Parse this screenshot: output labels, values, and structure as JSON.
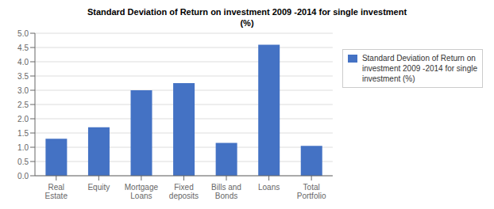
{
  "chart_data": {
    "type": "bar",
    "title": "Standard Deviation of Return on investment 2009 -2014 for single investment",
    "subtitle": "(%)",
    "categories": [
      "Real\nEstate",
      "Equity",
      "Mortgage\nLoans",
      "Fixed\ndeposits",
      "Bills and\nBonds",
      "Loans",
      "Total\nPortfolio"
    ],
    "series": [
      {
        "name": "Standard Deviation of Return on\ninvestment 2009 -2014 for single\ninvestment (%)",
        "color": "#4472C4",
        "values": [
          1.3,
          1.7,
          3.0,
          3.25,
          1.15,
          4.6,
          1.05
        ]
      }
    ],
    "ylim": [
      0.0,
      5.0
    ],
    "yticks": [
      {
        "value": 0,
        "label": "0.0"
      },
      0.5,
      {
        "value": 1,
        "label": "1.0"
      },
      1.5,
      {
        "value": 2,
        "label": "2.0"
      },
      2.5,
      {
        "value": 3,
        "label": "3.0"
      },
      3.5,
      {
        "value": 4,
        "label": "4.0"
      },
      4.5,
      {
        "value": 5,
        "label": "5.0"
      }
    ],
    "grid": true,
    "legend": "right"
  }
}
